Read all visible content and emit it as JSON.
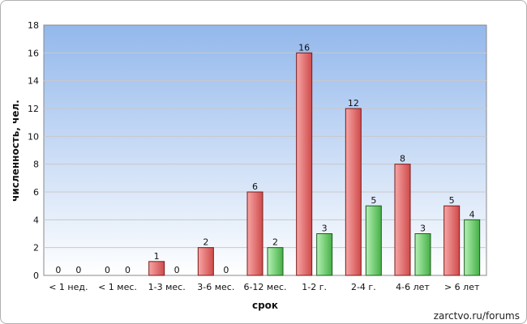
{
  "chart_data": {
    "type": "bar",
    "categories": [
      "< 1 нед.",
      "< 1 мес.",
      "1-3 мес.",
      "3-6 мес.",
      "6-12 мес.",
      "1-2 г.",
      "2-4 г.",
      "4-6 лет",
      "> 6 лет"
    ],
    "series": [
      {
        "values": [
          0,
          0,
          1,
          2,
          6,
          16,
          12,
          8,
          5
        ],
        "color": "#e06060"
      },
      {
        "values": [
          0,
          0,
          0,
          0,
          2,
          3,
          5,
          3,
          4
        ],
        "color": "#5cc85c"
      }
    ],
    "xlabel": "срок",
    "ylabel": "численность, чел.",
    "ylim": [
      0,
      18
    ],
    "yticks": [
      0,
      2,
      4,
      6,
      8,
      10,
      12,
      14,
      16,
      18
    ],
    "grid": true,
    "colors": {
      "plot_bg_top": "#93b8ec",
      "plot_bg_bottom": "#ffffff",
      "grid": "#c8c8c8"
    }
  },
  "watermark": "zarctvo.ru/forums"
}
